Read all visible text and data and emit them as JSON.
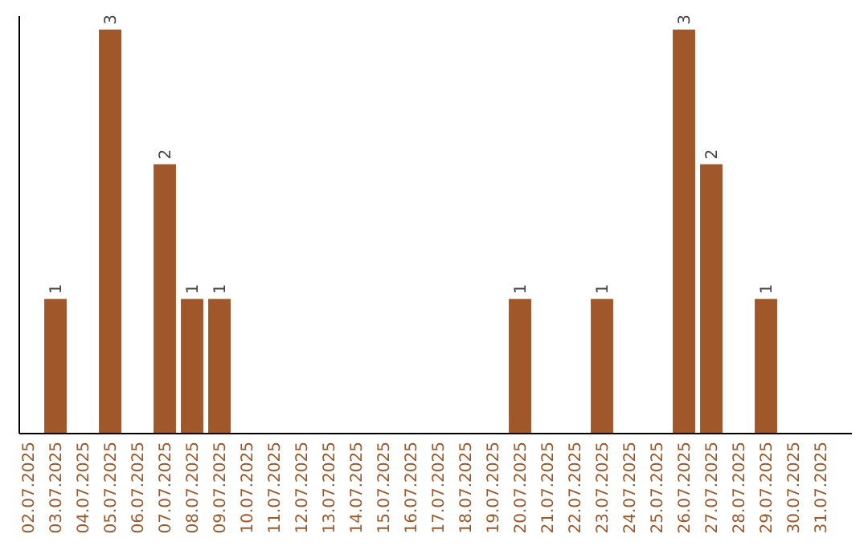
{
  "chart_data": {
    "type": "bar",
    "categories": [
      "02.07.2025",
      "03.07.2025",
      "04.07.2025",
      "05.07.2025",
      "06.07.2025",
      "07.07.2025",
      "08.07.2025",
      "09.07.2025",
      "10.07.2025",
      "11.07.2025",
      "12.07.2025",
      "13.07.2025",
      "14.07.2025",
      "15.07.2025",
      "16.07.2025",
      "17.07.2025",
      "18.07.2025",
      "19.07.2025",
      "20.07.2025",
      "21.07.2025",
      "22.07.2025",
      "23.07.2025",
      "24.07.2025",
      "25.07.2025",
      "26.07.2025",
      "27.07.2025",
      "28.07.2025",
      "29.07.2025",
      "30.07.2025",
      "31.07.2025"
    ],
    "values": [
      0,
      1,
      0,
      3,
      0,
      2,
      1,
      1,
      0,
      0,
      0,
      0,
      0,
      0,
      0,
      0,
      0,
      0,
      1,
      0,
      0,
      1,
      0,
      0,
      3,
      2,
      0,
      1,
      0,
      0
    ],
    "value_labels": [
      null,
      "1",
      null,
      "3",
      null,
      "2",
      "1",
      "1",
      null,
      null,
      null,
      null,
      null,
      null,
      null,
      null,
      null,
      null,
      "1",
      null,
      null,
      "1",
      null,
      null,
      "3",
      "2",
      null,
      "1",
      null,
      null
    ],
    "color": "#a0582a",
    "ylim": [
      0,
      3.1
    ],
    "tick_labels": "x"
  }
}
